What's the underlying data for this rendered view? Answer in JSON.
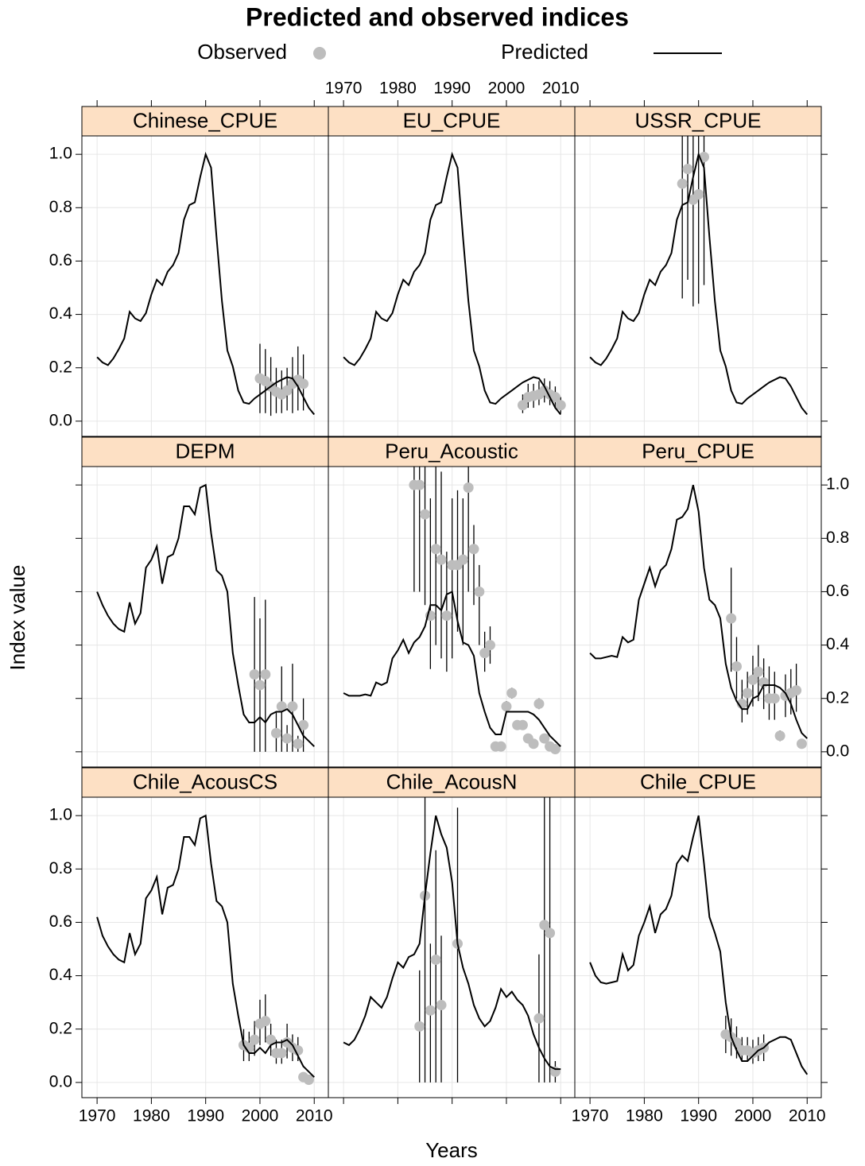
{
  "chart_data": {
    "type": "line",
    "title": "Predicted and observed indices",
    "xlabel": "Years",
    "ylabel": "Index value",
    "legend": [
      {
        "name": "Observed",
        "color": "#bdbdbd"
      },
      {
        "name": "Predicted",
        "color": "#000000"
      }
    ],
    "xlim": [
      1967.2,
      2012.6
    ],
    "ylim": [
      -0.057,
      1.069
    ],
    "xticks": [
      1970,
      1980,
      1990,
      2000,
      2010
    ],
    "yticks": [
      {
        "value": 0,
        "label": "0.0"
      },
      0.2,
      0.4,
      0.6,
      0.8,
      {
        "value": 1,
        "label": "1.0"
      }
    ],
    "grid": true,
    "strip_color": "#fde0c4",
    "x": [
      1970,
      1971,
      1972,
      1973,
      1974,
      1975,
      1976,
      1977,
      1978,
      1979,
      1980,
      1981,
      1982,
      1983,
      1984,
      1985,
      1986,
      1987,
      1988,
      1989,
      1990,
      1991,
      1992,
      1993,
      1994,
      1995,
      1996,
      1997,
      1998,
      1999,
      2000,
      2001,
      2002,
      2003,
      2004,
      2005,
      2006,
      2007,
      2008,
      2009,
      2010
    ],
    "panels": [
      {
        "name": "Chinese_CPUE",
        "predicted": [
          0.24,
          0.22,
          0.21,
          0.235,
          0.27,
          0.31,
          0.41,
          0.385,
          0.375,
          0.405,
          0.475,
          0.53,
          0.51,
          0.56,
          0.585,
          0.63,
          0.755,
          0.81,
          0.82,
          0.915,
          1.0,
          0.95,
          0.69,
          0.45,
          0.265,
          0.205,
          0.115,
          0.07,
          0.065,
          0.085,
          0.1,
          0.115,
          0.13,
          0.145,
          0.155,
          0.165,
          0.16,
          0.13,
          0.09,
          0.05,
          0.025
        ],
        "observed": {
          "x": [
            2000,
            2001,
            2002,
            2003,
            2004,
            2005,
            2006,
            2007,
            2008
          ],
          "values": [
            0.16,
            0.15,
            0.13,
            0.11,
            0.1,
            0.115,
            0.14,
            0.155,
            0.14
          ],
          "lower": [
            0.03,
            0.03,
            0.02,
            0.03,
            0.03,
            0.04,
            0.03,
            0.04,
            0.04
          ],
          "upper": [
            0.29,
            0.27,
            0.24,
            0.2,
            0.19,
            0.2,
            0.24,
            0.28,
            0.25
          ]
        }
      },
      {
        "name": "EU_CPUE",
        "predicted": [
          0.24,
          0.22,
          0.21,
          0.235,
          0.27,
          0.31,
          0.41,
          0.385,
          0.375,
          0.405,
          0.475,
          0.53,
          0.51,
          0.56,
          0.585,
          0.63,
          0.755,
          0.81,
          0.82,
          0.915,
          1.0,
          0.95,
          0.69,
          0.45,
          0.265,
          0.205,
          0.115,
          0.07,
          0.065,
          0.085,
          0.1,
          0.115,
          0.13,
          0.145,
          0.155,
          0.165,
          0.16,
          0.13,
          0.09,
          0.05,
          0.025
        ],
        "observed": {
          "x": [
            2003,
            2004,
            2005,
            2006,
            2007,
            2008,
            2009,
            2010
          ],
          "values": [
            0.06,
            0.09,
            0.095,
            0.1,
            0.115,
            0.1,
            0.09,
            0.06
          ],
          "lower": [
            0.03,
            0.05,
            0.05,
            0.06,
            0.07,
            0.06,
            0.05,
            0.03
          ],
          "upper": [
            0.1,
            0.14,
            0.14,
            0.15,
            0.16,
            0.15,
            0.13,
            0.09
          ]
        }
      },
      {
        "name": "USSR_CPUE",
        "predicted": [
          0.24,
          0.22,
          0.21,
          0.235,
          0.27,
          0.31,
          0.41,
          0.385,
          0.375,
          0.405,
          0.475,
          0.53,
          0.51,
          0.56,
          0.585,
          0.63,
          0.755,
          0.81,
          0.82,
          0.915,
          1.0,
          0.95,
          0.69,
          0.45,
          0.265,
          0.205,
          0.115,
          0.07,
          0.065,
          0.085,
          0.1,
          0.115,
          0.13,
          0.145,
          0.155,
          0.165,
          0.16,
          0.13,
          0.09,
          0.05,
          0.025
        ],
        "observed": {
          "x": [
            1987,
            1988,
            1989,
            1990,
            1991
          ],
          "values": [
            0.89,
            0.945,
            0.83,
            0.85,
            0.99
          ],
          "lower": [
            0.46,
            0.53,
            0.43,
            0.44,
            0.51
          ],
          "upper": [
            1.32,
            1.36,
            1.23,
            1.26,
            1.47
          ]
        }
      },
      {
        "name": "DEPM",
        "predicted": [
          0.6,
          0.55,
          0.51,
          0.48,
          0.46,
          0.45,
          0.56,
          0.48,
          0.52,
          0.69,
          0.72,
          0.77,
          0.63,
          0.73,
          0.74,
          0.8,
          0.92,
          0.92,
          0.89,
          0.99,
          1.0,
          0.82,
          0.68,
          0.66,
          0.6,
          0.37,
          0.25,
          0.14,
          0.11,
          0.11,
          0.13,
          0.11,
          0.14,
          0.15,
          0.15,
          0.16,
          0.14,
          0.1,
          0.06,
          0.04,
          0.02
        ],
        "observed": {
          "x": [
            1999,
            2000,
            2001,
            2003,
            2004,
            2005,
            2006,
            2007,
            2008
          ],
          "values": [
            0.29,
            0.25,
            0.29,
            0.07,
            0.17,
            0.05,
            0.17,
            0.03,
            0.1
          ],
          "lower": [
            0.0,
            0.0,
            0.0,
            0.0,
            0.0,
            0.0,
            0.0,
            0.0,
            0.0
          ],
          "upper": [
            0.58,
            0.5,
            0.57,
            0.15,
            0.32,
            0.1,
            0.33,
            0.06,
            0.2
          ]
        }
      },
      {
        "name": "Peru_Acoustic",
        "predicted": [
          0.22,
          0.21,
          0.21,
          0.21,
          0.215,
          0.21,
          0.26,
          0.25,
          0.26,
          0.35,
          0.38,
          0.42,
          0.37,
          0.41,
          0.43,
          0.47,
          0.55,
          0.55,
          0.53,
          0.59,
          0.6,
          0.49,
          0.41,
          0.4,
          0.36,
          0.22,
          0.15,
          0.09,
          0.065,
          0.065,
          0.15,
          0.15,
          0.15,
          0.15,
          0.15,
          0.14,
          0.12,
          0.09,
          0.06,
          0.04,
          0.02
        ],
        "observed": {
          "x": [
            1983,
            1984,
            1985,
            1986,
            1987,
            1988,
            1989,
            1990,
            1991,
            1992,
            1993,
            1994,
            1995,
            1996,
            1997,
            1998,
            1999,
            2000,
            2001,
            2002,
            2003,
            2004,
            2005,
            2006,
            2007,
            2008,
            2009
          ],
          "values": [
            1.0,
            1.0,
            0.89,
            0.51,
            0.76,
            0.72,
            0.51,
            0.7,
            0.7,
            0.72,
            0.99,
            0.76,
            0.6,
            0.37,
            0.4,
            0.02,
            0.02,
            0.17,
            0.22,
            0.1,
            0.1,
            0.05,
            0.03,
            0.18,
            0.05,
            0.02,
            0.01
          ],
          "lower": [
            0.6,
            0.6,
            0.55,
            0.31,
            0.4,
            0.35,
            0.3,
            0.35,
            0.45,
            0.4,
            0.6,
            0.55,
            0.4,
            0.3,
            0.33,
            0.01,
            0.01,
            0.15,
            0.2,
            0.09,
            0.09,
            0.04,
            0.02,
            0.16,
            0.04,
            0.01,
            0.0
          ],
          "upper": [
            1.2,
            1.25,
            1.1,
            0.95,
            1.1,
            1.05,
            0.75,
            0.95,
            0.98,
            0.95,
            1.1,
            0.85,
            0.7,
            0.45,
            0.47,
            0.03,
            0.03,
            0.19,
            0.24,
            0.11,
            0.11,
            0.06,
            0.04,
            0.2,
            0.06,
            0.03,
            0.02
          ]
        }
      },
      {
        "name": "Peru_CPUE",
        "predicted": [
          0.37,
          0.35,
          0.35,
          0.355,
          0.36,
          0.355,
          0.43,
          0.41,
          0.42,
          0.57,
          0.63,
          0.69,
          0.62,
          0.68,
          0.7,
          0.76,
          0.87,
          0.88,
          0.91,
          1.0,
          0.9,
          0.69,
          0.57,
          0.55,
          0.5,
          0.33,
          0.24,
          0.19,
          0.16,
          0.16,
          0.2,
          0.21,
          0.25,
          0.25,
          0.25,
          0.24,
          0.22,
          0.18,
          0.12,
          0.07,
          0.05
        ],
        "observed": {
          "x": [
            1996,
            1997,
            1998,
            1999,
            2000,
            2001,
            2002,
            2003,
            2004,
            2005,
            2006,
            2007,
            2008,
            2009
          ],
          "values": [
            0.5,
            0.32,
            0.18,
            0.22,
            0.27,
            0.3,
            0.26,
            0.2,
            0.2,
            0.06,
            0.21,
            0.22,
            0.23,
            0.03
          ],
          "lower": [
            0.3,
            0.2,
            0.11,
            0.14,
            0.17,
            0.19,
            0.16,
            0.12,
            0.12,
            0.04,
            0.13,
            0.14,
            0.15,
            0.02
          ],
          "upper": [
            0.69,
            0.43,
            0.27,
            0.3,
            0.36,
            0.4,
            0.35,
            0.32,
            0.3,
            0.08,
            0.29,
            0.31,
            0.33,
            0.04
          ]
        }
      },
      {
        "name": "Chile_AcousCS",
        "predicted": [
          0.62,
          0.55,
          0.51,
          0.48,
          0.46,
          0.45,
          0.56,
          0.48,
          0.52,
          0.69,
          0.72,
          0.77,
          0.63,
          0.73,
          0.74,
          0.8,
          0.92,
          0.92,
          0.89,
          0.99,
          1.0,
          0.82,
          0.68,
          0.66,
          0.6,
          0.37,
          0.25,
          0.14,
          0.11,
          0.11,
          0.13,
          0.11,
          0.14,
          0.15,
          0.15,
          0.16,
          0.14,
          0.1,
          0.06,
          0.04,
          0.02
        ],
        "observed": {
          "x": [
            1997,
            1998,
            1999,
            2000,
            2001,
            2002,
            2003,
            2004,
            2005,
            2006,
            2007,
            2008,
            2009
          ],
          "values": [
            0.14,
            0.13,
            0.16,
            0.22,
            0.23,
            0.16,
            0.11,
            0.11,
            0.15,
            0.13,
            0.12,
            0.02,
            0.01
          ],
          "lower": [
            0.08,
            0.08,
            0.1,
            0.14,
            0.15,
            0.1,
            0.07,
            0.07,
            0.09,
            0.08,
            0.08,
            0.01,
            0.01
          ],
          "upper": [
            0.2,
            0.19,
            0.23,
            0.31,
            0.33,
            0.22,
            0.16,
            0.16,
            0.22,
            0.18,
            0.17,
            0.03,
            0.02
          ]
        }
      },
      {
        "name": "Chile_AcousN",
        "predicted": [
          0.15,
          0.14,
          0.16,
          0.2,
          0.25,
          0.32,
          0.3,
          0.28,
          0.32,
          0.39,
          0.45,
          0.43,
          0.47,
          0.48,
          0.52,
          0.7,
          0.86,
          1.0,
          0.93,
          0.88,
          0.75,
          0.52,
          0.43,
          0.37,
          0.29,
          0.24,
          0.21,
          0.23,
          0.28,
          0.35,
          0.32,
          0.34,
          0.31,
          0.29,
          0.25,
          0.18,
          0.13,
          0.09,
          0.06,
          0.05,
          0.05
        ],
        "observed": {
          "x": [
            1984,
            1985,
            1986,
            1987,
            1988,
            1991,
            2006,
            2007,
            2008,
            2009
          ],
          "values": [
            0.21,
            0.7,
            0.27,
            0.46,
            0.29,
            0.52,
            0.24,
            0.59,
            0.56,
            0.04
          ],
          "lower": [
            0.0,
            0.0,
            0.0,
            0.0,
            0.0,
            0.0,
            0.0,
            0.0,
            0.0,
            0.0
          ],
          "upper": [
            0.42,
            1.2,
            0.52,
            0.87,
            0.55,
            1.03,
            0.48,
            1.2,
            1.3,
            0.08
          ]
        }
      },
      {
        "name": "Chile_CPUE",
        "predicted": [
          0.45,
          0.4,
          0.375,
          0.37,
          0.375,
          0.38,
          0.48,
          0.42,
          0.44,
          0.55,
          0.6,
          0.66,
          0.56,
          0.63,
          0.65,
          0.7,
          0.82,
          0.85,
          0.83,
          0.92,
          1.0,
          0.82,
          0.62,
          0.56,
          0.49,
          0.3,
          0.17,
          0.12,
          0.08,
          0.08,
          0.1,
          0.12,
          0.13,
          0.15,
          0.16,
          0.17,
          0.17,
          0.16,
          0.11,
          0.06,
          0.03
        ],
        "observed": {
          "x": [
            1995,
            1996,
            1997,
            1998,
            1999,
            2000,
            2001,
            2002
          ],
          "values": [
            0.18,
            0.17,
            0.15,
            0.12,
            0.12,
            0.11,
            0.12,
            0.13
          ],
          "lower": [
            0.11,
            0.1,
            0.09,
            0.08,
            0.08,
            0.07,
            0.08,
            0.08
          ],
          "upper": [
            0.25,
            0.24,
            0.21,
            0.17,
            0.17,
            0.16,
            0.17,
            0.18
          ]
        }
      }
    ]
  }
}
